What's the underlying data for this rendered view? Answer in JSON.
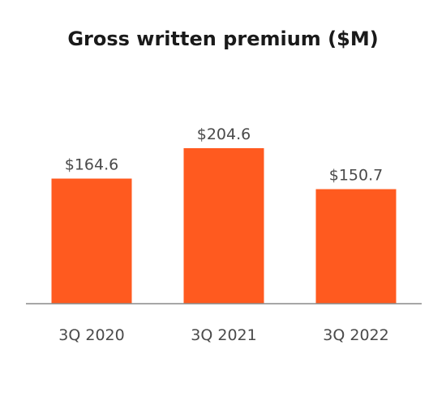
{
  "chart_data": {
    "type": "bar",
    "title": "Gross written premium ($M)",
    "categories": [
      "3Q 2020",
      "3Q 2021",
      "3Q 2022"
    ],
    "values": [
      164.6,
      204.6,
      150.7
    ],
    "data_labels": [
      "$164.6",
      "$204.6",
      "$150.7"
    ],
    "ylim": [
      0,
      210
    ],
    "grid": false,
    "legend": "none",
    "colors": {
      "bar": "#FF5A1F",
      "axis": "#8a8a8a",
      "text": "#4a4a4a",
      "title": "#1a1a1a"
    }
  }
}
